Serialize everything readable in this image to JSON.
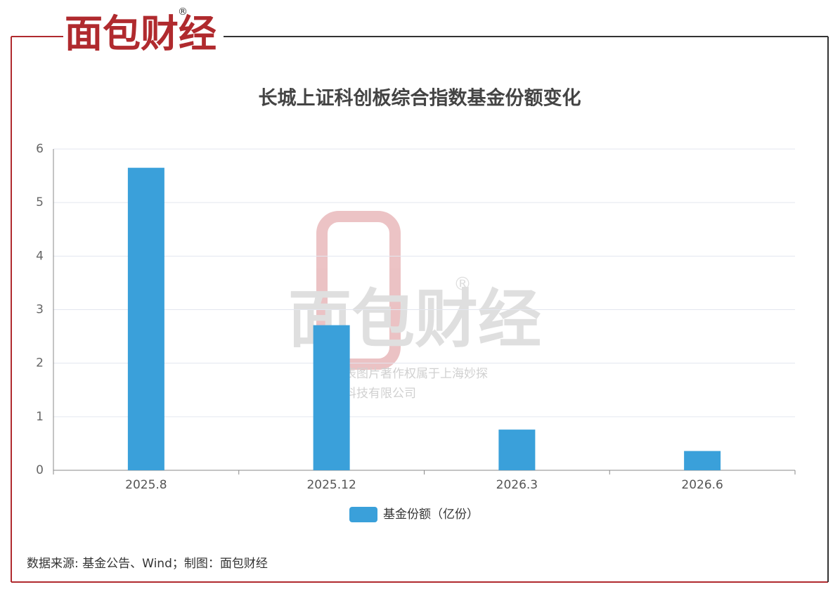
{
  "brand": {
    "name": "面包财经",
    "mark": "®"
  },
  "watermark": {
    "lines": [
      "本图表图片著作权属于上海妙探",
      "网络科技有限公司"
    ]
  },
  "source": "数据来源: 基金公告、Wind；制图：面包财经",
  "chart_data": {
    "type": "bar",
    "title": "长城上证科创板综合指数基金份额变化",
    "categories": [
      "2025.8",
      "2025.12",
      "2026.3",
      "2026.6"
    ],
    "series": [
      {
        "name": "基金份额（亿份）",
        "color": "#3aa0da",
        "values": [
          5.65,
          2.71,
          0.76,
          0.36
        ]
      }
    ],
    "ylim": [
      0,
      6
    ],
    "yticks": [
      0,
      1,
      2,
      3,
      4,
      5,
      6
    ],
    "grid": true,
    "legend": "bottom"
  }
}
